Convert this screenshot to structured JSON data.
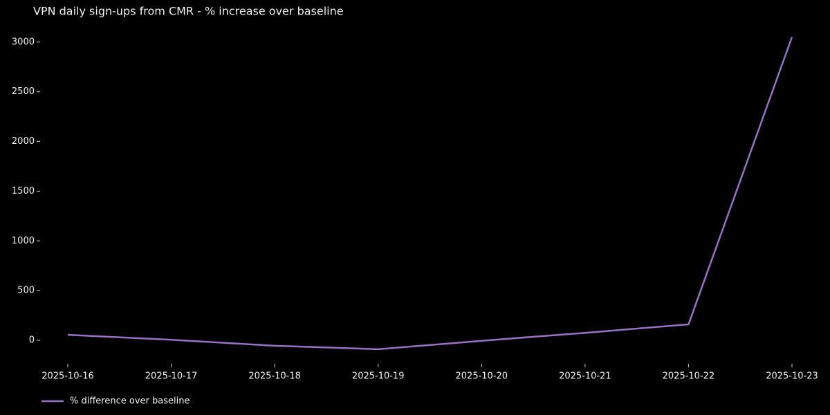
{
  "chart_data": {
    "type": "line",
    "title": "VPN daily sign-ups from CMR - % increase over baseline",
    "x": [
      "2025-10-16",
      "2025-10-17",
      "2025-10-18",
      "2025-10-19",
      "2025-10-20",
      "2025-10-21",
      "2025-10-22",
      "2025-10-23"
    ],
    "series": [
      {
        "name": "% difference over baseline",
        "color": "#9a6fc7",
        "values": [
          55,
          5,
          -55,
          -90,
          -5,
          75,
          160,
          3050
        ]
      }
    ],
    "ylim": [
      -195,
      3110
    ],
    "yticks": [
      0,
      500,
      1000,
      1500,
      2000,
      2500,
      3000
    ],
    "grid": false,
    "legend": "lower left"
  }
}
